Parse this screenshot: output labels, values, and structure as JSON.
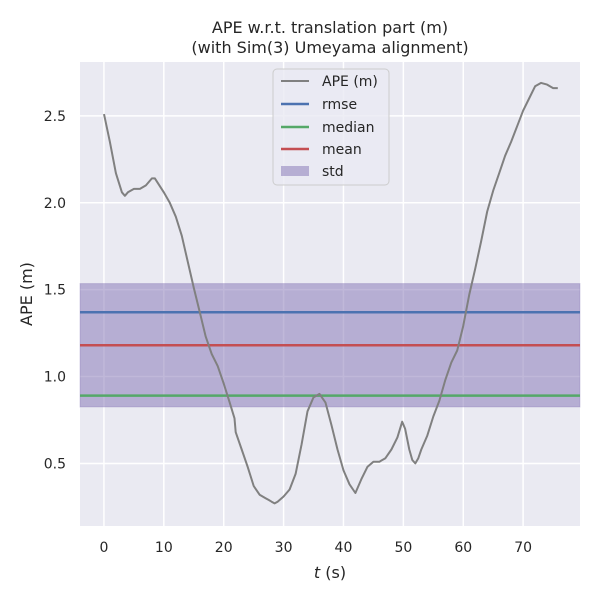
{
  "chart_data": {
    "type": "line",
    "title": [
      "APE w.r.t. translation part (m)",
      "(with Sim(3) Umeyama alignment)"
    ],
    "xlabel_italic": "t",
    "xlabel_rest": " (s)",
    "ylabel": "APE (m)",
    "xlim": [
      -4,
      79.5
    ],
    "ylim": [
      0.14,
      2.81
    ],
    "xticks": [
      0,
      10,
      20,
      30,
      40,
      50,
      60,
      70
    ],
    "yticks": [
      0.5,
      1.0,
      1.5,
      2.0,
      2.5
    ],
    "xtick_labels": [
      "0",
      "10",
      "20",
      "30",
      "40",
      "50",
      "60",
      "70"
    ],
    "ytick_labels": [
      "0.5",
      "1.0",
      "1.5",
      "2.0",
      "2.5"
    ],
    "grid": true,
    "legend_position": "top-center",
    "background": "#EAEAF2",
    "series": [
      {
        "name": "APE (m)",
        "color": "#808080",
        "x": [
          0,
          1,
          2,
          3,
          3.5,
          4,
          5,
          6,
          7,
          8,
          8.5,
          10,
          11,
          12,
          13,
          14,
          15,
          16,
          17,
          18,
          19,
          20,
          21,
          21.8,
          22,
          23,
          24,
          25,
          26,
          27,
          27.5,
          28,
          28.5,
          29,
          30,
          31,
          32,
          33,
          34,
          35,
          36,
          37,
          38,
          39,
          40,
          41,
          42,
          43,
          44,
          45,
          46,
          47,
          48,
          49,
          49.8,
          50.3,
          51,
          51.5,
          52,
          52.5,
          53,
          54,
          55,
          56,
          57,
          58,
          59,
          60,
          61,
          62,
          63,
          64,
          65,
          66,
          67,
          68,
          69,
          70,
          71,
          72,
          73,
          74,
          75,
          75.8
        ],
        "y": [
          2.51,
          2.35,
          2.17,
          2.06,
          2.04,
          2.06,
          2.08,
          2.08,
          2.1,
          2.14,
          2.14,
          2.06,
          2.0,
          1.92,
          1.81,
          1.66,
          1.51,
          1.37,
          1.23,
          1.13,
          1.06,
          0.96,
          0.85,
          0.76,
          0.68,
          0.58,
          0.48,
          0.37,
          0.32,
          0.3,
          0.29,
          0.28,
          0.27,
          0.28,
          0.31,
          0.35,
          0.44,
          0.61,
          0.8,
          0.88,
          0.9,
          0.85,
          0.72,
          0.58,
          0.46,
          0.38,
          0.33,
          0.41,
          0.48,
          0.51,
          0.51,
          0.53,
          0.58,
          0.65,
          0.74,
          0.7,
          0.58,
          0.52,
          0.5,
          0.53,
          0.58,
          0.66,
          0.77,
          0.86,
          0.98,
          1.08,
          1.15,
          1.29,
          1.47,
          1.62,
          1.78,
          1.95,
          2.07,
          2.17,
          2.27,
          2.35,
          2.44,
          2.53,
          2.6,
          2.67,
          2.69,
          2.68,
          2.66,
          2.66
        ]
      }
    ],
    "hlines": [
      {
        "name": "rmse",
        "value": 1.37,
        "color": "#4C72B0"
      },
      {
        "name": "median",
        "value": 0.89,
        "color": "#55A868"
      },
      {
        "name": "mean",
        "value": 1.18,
        "color": "#C44E52"
      }
    ],
    "band": {
      "name": "std",
      "from": 0.825,
      "to": 1.535,
      "color": "#8172B3"
    },
    "legend": [
      "APE (m)",
      "rmse",
      "median",
      "mean",
      "std"
    ]
  }
}
